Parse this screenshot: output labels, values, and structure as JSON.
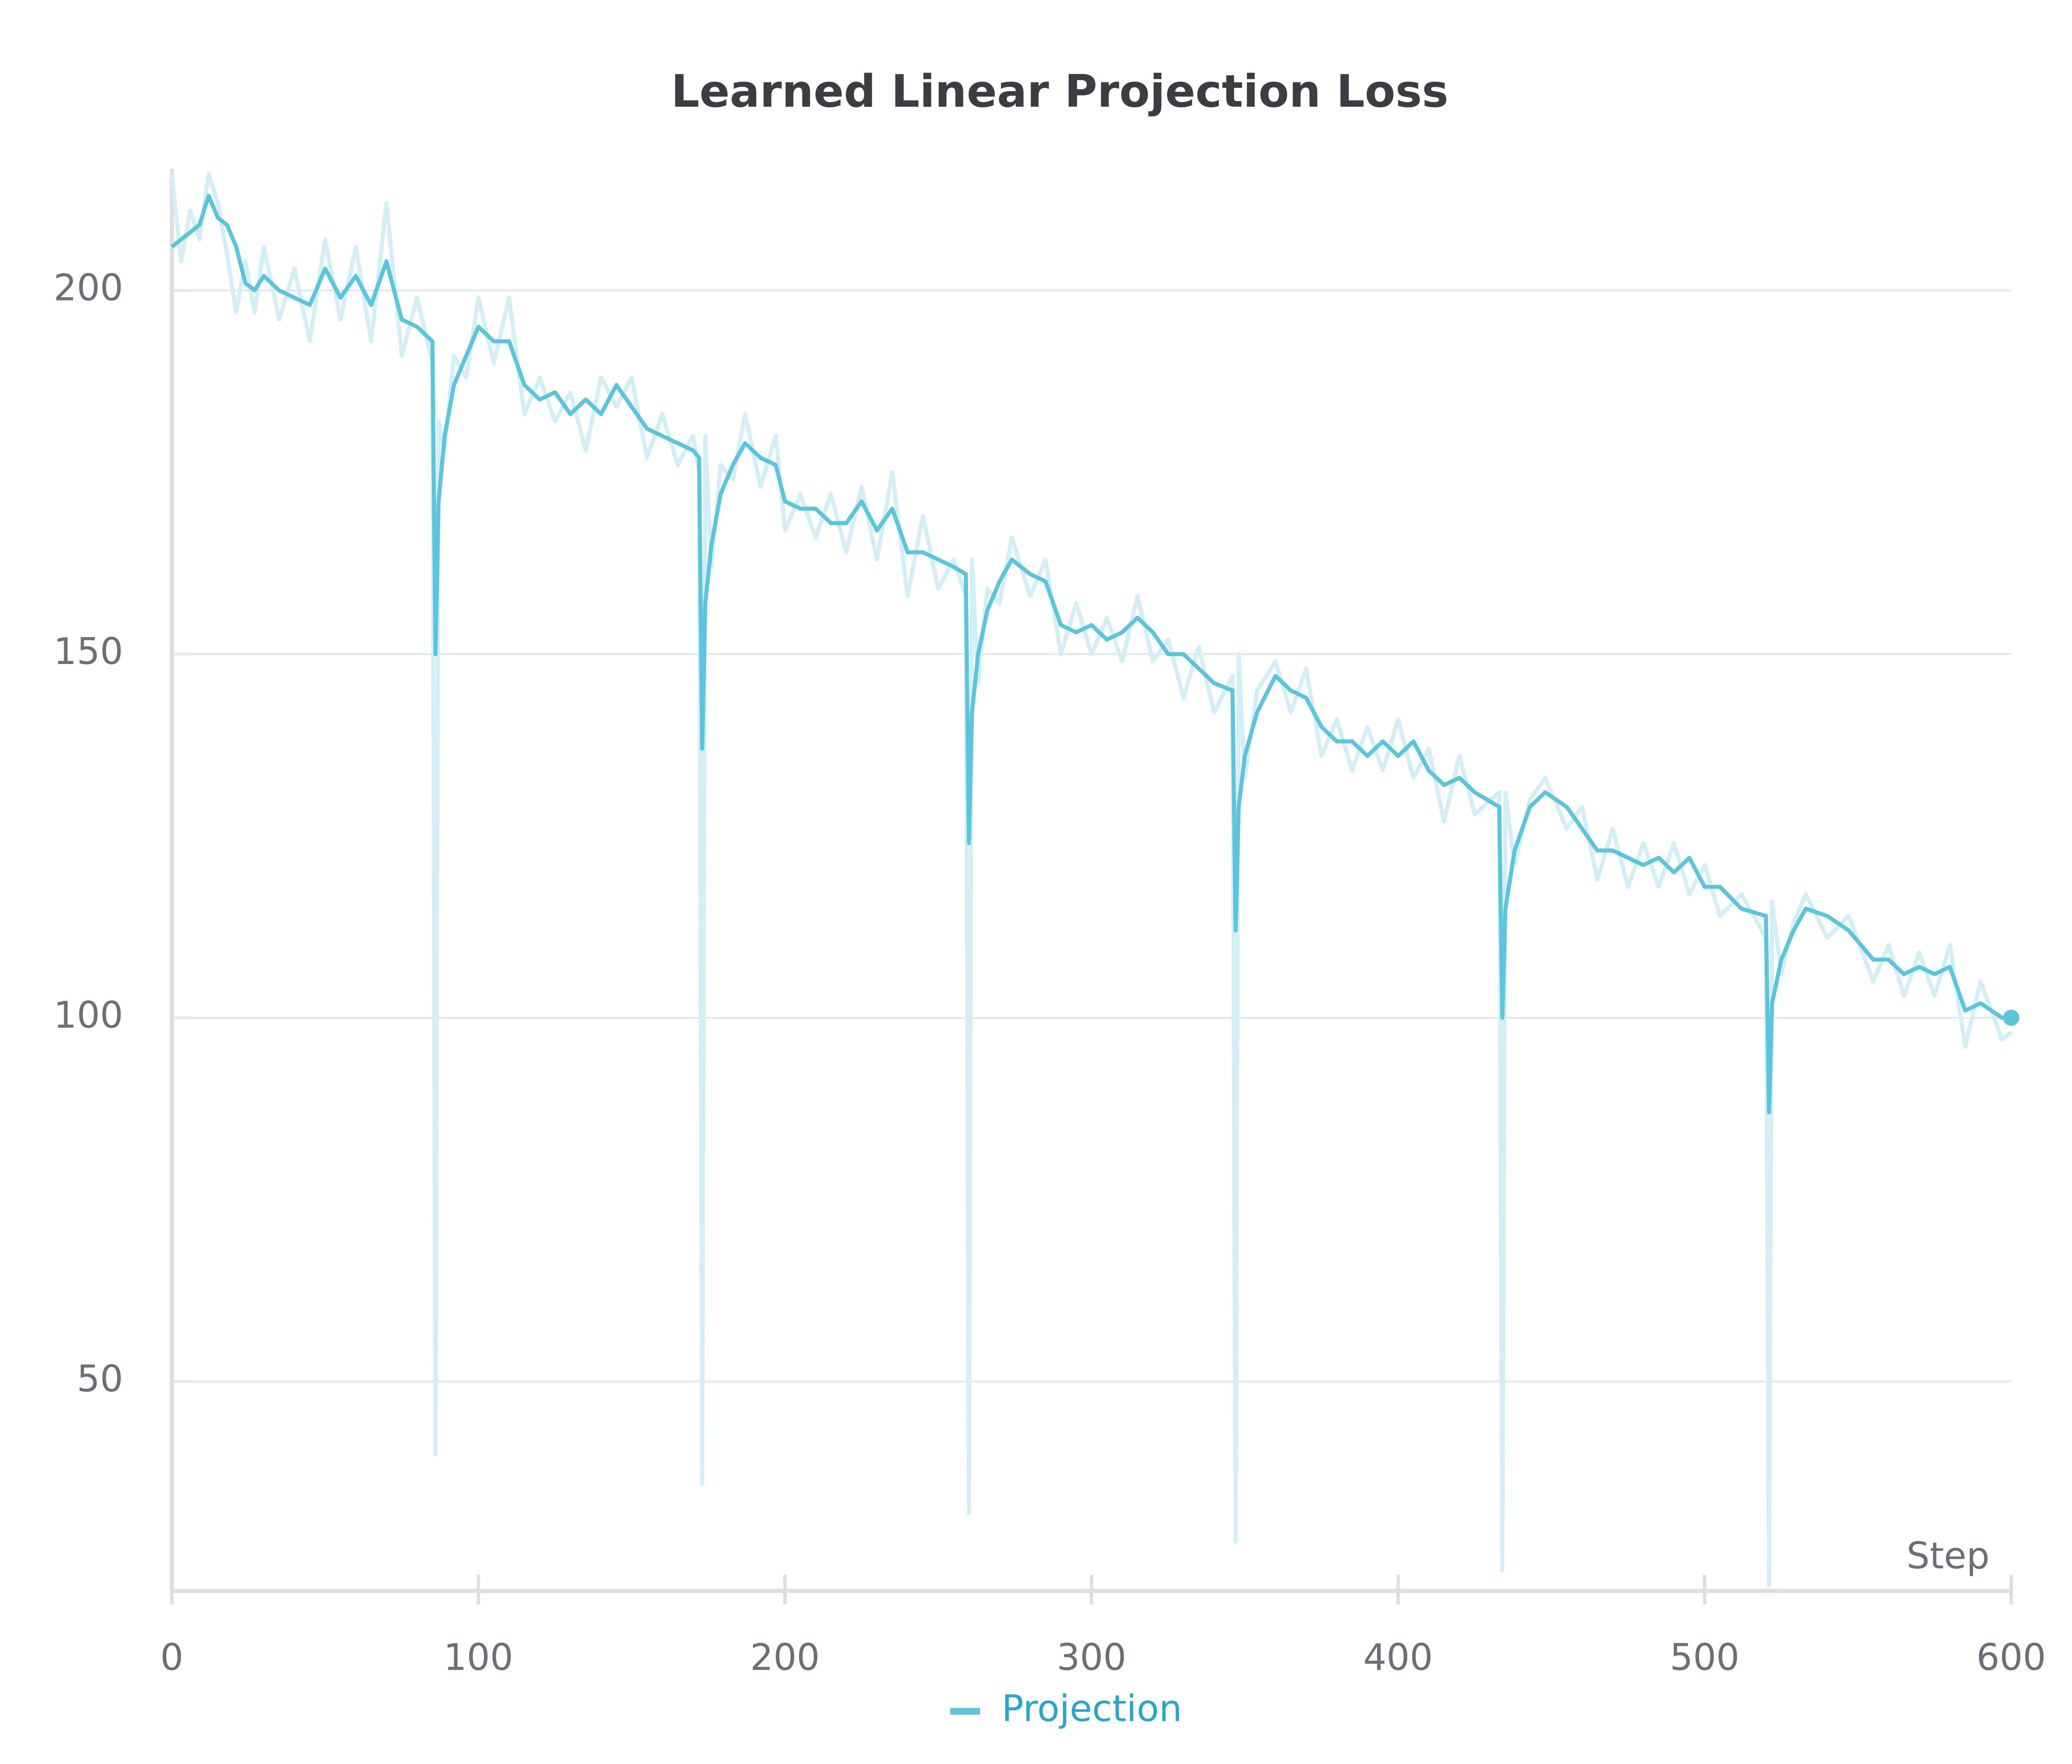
{
  "chart_data": {
    "type": "line",
    "title": "Learned Linear Projection Loss",
    "x_label": "Step",
    "x": [
      0,
      3,
      6,
      9,
      12,
      15,
      18,
      21,
      24,
      27,
      30,
      35,
      40,
      45,
      50,
      55,
      60,
      65,
      70,
      75,
      80,
      85,
      86,
      87,
      89,
      92,
      96,
      100,
      105,
      110,
      115,
      120,
      125,
      130,
      135,
      140,
      145,
      150,
      155,
      160,
      165,
      170,
      172,
      173,
      174,
      176,
      179,
      183,
      187,
      192,
      197,
      200,
      205,
      210,
      215,
      220,
      225,
      230,
      235,
      240,
      245,
      250,
      255,
      259,
      260,
      261,
      263,
      266,
      270,
      274,
      280,
      285,
      290,
      295,
      300,
      305,
      310,
      315,
      320,
      325,
      330,
      335,
      340,
      346,
      347,
      348,
      350,
      354,
      360,
      365,
      370,
      375,
      380,
      385,
      390,
      395,
      400,
      405,
      410,
      415,
      420,
      425,
      433,
      434,
      435,
      438,
      443,
      448,
      455,
      460,
      465,
      470,
      475,
      480,
      485,
      490,
      495,
      500,
      505,
      512,
      520,
      521,
      522,
      525,
      529,
      533,
      540,
      547,
      555,
      560,
      565,
      570,
      575,
      580,
      585,
      590,
      597,
      600
    ],
    "series": [
      {
        "name": "Projection",
        "color": "#5bc5db",
        "raw_color": "#d3eef5",
        "values": [
          206,
          207,
          208,
          209,
          213,
          210,
          209,
          206,
          201,
          200,
          202,
          200,
          199,
          198,
          203,
          199,
          202,
          198,
          204,
          196,
          195,
          193,
          150,
          171,
          180,
          187,
          191,
          195,
          193,
          193,
          187,
          185,
          186,
          183,
          185,
          183,
          187,
          184,
          181,
          180,
          179,
          178,
          177,
          137,
          157,
          165,
          172,
          176,
          179,
          177,
          176,
          171,
          170,
          170,
          168,
          168,
          171,
          167,
          170,
          164,
          164,
          163,
          162,
          161,
          124,
          142,
          150,
          156,
          160,
          163,
          161,
          160,
          154,
          153,
          154,
          152,
          153,
          155,
          153,
          150,
          150,
          148,
          146,
          145,
          112,
          129,
          136,
          142,
          147,
          145,
          144,
          140,
          138,
          138,
          136,
          138,
          136,
          138,
          134,
          132,
          133,
          131,
          129,
          100,
          115,
          123,
          129,
          131,
          129,
          126,
          123,
          123,
          122,
          121,
          122,
          120,
          122,
          118,
          118,
          115,
          114,
          87,
          102,
          108,
          112,
          115,
          114,
          112,
          108,
          108,
          106,
          107,
          106,
          107,
          101,
          102,
          100,
          100
        ],
        "raw_values": [
          216,
          204,
          211,
          207,
          216,
          212,
          205,
          197,
          204,
          197,
          206,
          196,
          203,
          193,
          207,
          196,
          206,
          193,
          212,
          191,
          199,
          190,
          40,
          182,
          178,
          191,
          188,
          199,
          190,
          199,
          183,
          188,
          182,
          186,
          178,
          188,
          184,
          188,
          177,
          183,
          176,
          180,
          175,
          36,
          180,
          162,
          176,
          174,
          183,
          173,
          180,
          167,
          172,
          166,
          172,
          164,
          173,
          163,
          175,
          158,
          169,
          159,
          163,
          158,
          32,
          163,
          146,
          159,
          157,
          166,
          158,
          163,
          150,
          157,
          150,
          155,
          149,
          158,
          149,
          152,
          144,
          151,
          142,
          147,
          28,
          150,
          133,
          145,
          149,
          142,
          148,
          136,
          141,
          134,
          140,
          134,
          141,
          133,
          137,
          127,
          136,
          128,
          131,
          24,
          131,
          121,
          130,
          133,
          126,
          129,
          119,
          126,
          118,
          124,
          118,
          124,
          117,
          121,
          114,
          117,
          111,
          22,
          116,
          106,
          113,
          117,
          111,
          114,
          105,
          110,
          103,
          109,
          103,
          110,
          96,
          105,
          97,
          98
        ]
      }
    ],
    "xlim": [
      0,
      600
    ],
    "xticks": [
      0,
      100,
      200,
      300,
      400,
      500,
      600
    ],
    "ylim": [
      21.2,
      216.7
    ],
    "yticks": [
      50,
      100,
      150,
      200
    ],
    "grid": true,
    "legend": "bottom"
  }
}
